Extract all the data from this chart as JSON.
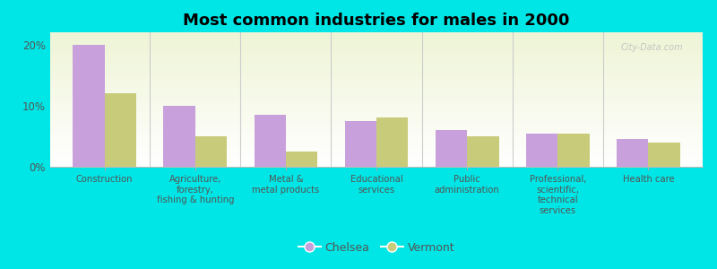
{
  "title": "Most common industries for males in 2000",
  "categories": [
    "Construction",
    "Agriculture,\nforestry,\nfishing & hunting",
    "Metal &\nmetal products",
    "Educational\nservices",
    "Public\nadministration",
    "Professional,\nscientific,\ntechnical\nservices",
    "Health care"
  ],
  "chelsea_values": [
    20.0,
    10.0,
    8.5,
    7.5,
    6.0,
    5.5,
    4.5
  ],
  "vermont_values": [
    12.0,
    5.0,
    2.5,
    8.0,
    5.0,
    5.5,
    4.0
  ],
  "chelsea_color": "#c8a0dc",
  "vermont_color": "#c8cc7a",
  "background_color": "#00e5e5",
  "plot_bg_top": "#eef4d5",
  "plot_bg_bottom": "#ffffff",
  "bar_width": 0.35,
  "ylim": [
    0,
    22
  ],
  "yticks": [
    0,
    10,
    20
  ],
  "ytick_labels": [
    "0%",
    "10%",
    "20%"
  ],
  "title_fontsize": 13,
  "label_fontsize": 7.2,
  "legend_labels": [
    "Chelsea",
    "Vermont"
  ],
  "watermark": "City-Data.com"
}
